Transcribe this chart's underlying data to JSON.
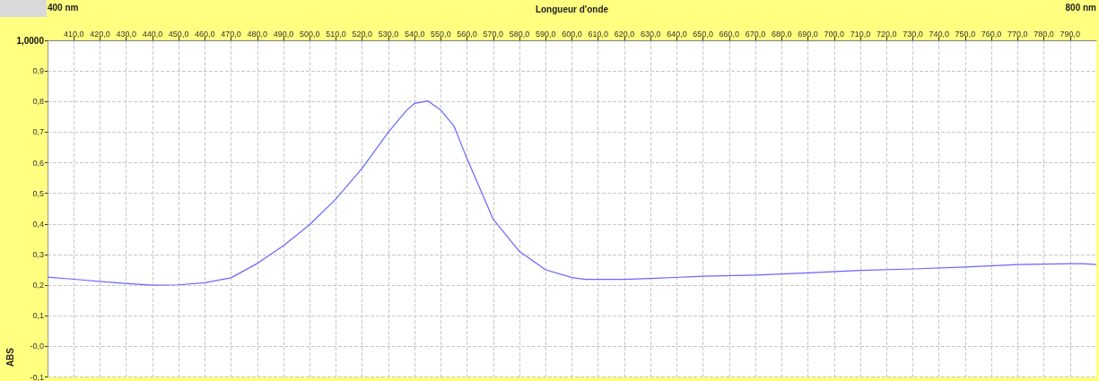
{
  "chart_data": {
    "type": "line",
    "xlabel": "Longueur d'onde",
    "ylabel": "ABS",
    "x": [
      400,
      409,
      427,
      440,
      450,
      460,
      470,
      480,
      490,
      500,
      510,
      520,
      530,
      537,
      540,
      545,
      550,
      555,
      560,
      570,
      580,
      590,
      600,
      605,
      610,
      620,
      630,
      650,
      670,
      690,
      710,
      730,
      750,
      770,
      790,
      795,
      800
    ],
    "series": [
      {
        "color": "#6666ff",
        "values": [
          0.226,
          0.22,
          0.207,
          0.2,
          0.201,
          0.208,
          0.224,
          0.271,
          0.329,
          0.398,
          0.482,
          0.582,
          0.7,
          0.772,
          0.794,
          0.802,
          0.772,
          0.72,
          0.613,
          0.415,
          0.31,
          0.25,
          0.225,
          0.219,
          0.219,
          0.219,
          0.222,
          0.229,
          0.233,
          0.24,
          0.248,
          0.253,
          0.259,
          0.267,
          0.27,
          0.27,
          0.267
        ]
      }
    ],
    "xlim": [
      400,
      800
    ],
    "annotations": [
      "400 nm",
      "800 nm"
    ],
    "xticks": [
      {
        "value": 410,
        "label": "410,0"
      },
      {
        "value": 420,
        "label": "420,0"
      },
      {
        "value": 430,
        "label": "430,0"
      },
      {
        "value": 440,
        "label": "440,0"
      },
      {
        "value": 450,
        "label": "450,0"
      },
      {
        "value": 460,
        "label": "460,0"
      },
      {
        "value": 470,
        "label": "470,0"
      },
      {
        "value": 480,
        "label": "480,0"
      },
      {
        "value": 490,
        "label": "490,0"
      },
      {
        "value": 500,
        "label": "500,0"
      },
      {
        "value": 510,
        "label": "510,0"
      },
      {
        "value": 520,
        "label": "520,0"
      },
      {
        "value": 530,
        "label": "530,0"
      },
      {
        "value": 540,
        "label": "540,0"
      },
      {
        "value": 550,
        "label": "550,0"
      },
      {
        "value": 560,
        "label": "560,0"
      },
      {
        "value": 570,
        "label": "570,0"
      },
      {
        "value": 580,
        "label": "580,0"
      },
      {
        "value": 590,
        "label": "590,0"
      },
      {
        "value": 600,
        "label": "600,0"
      },
      {
        "value": 610,
        "label": "610,0"
      },
      {
        "value": 620,
        "label": "620,0"
      },
      {
        "value": 630,
        "label": "630,0"
      },
      {
        "value": 640,
        "label": "640,0"
      },
      {
        "value": 650,
        "label": "650,0"
      },
      {
        "value": 660,
        "label": "660,0"
      },
      {
        "value": 670,
        "label": "670,0"
      },
      {
        "value": 680,
        "label": "680,0"
      },
      {
        "value": 690,
        "label": "690,0"
      },
      {
        "value": 700,
        "label": "700,0"
      },
      {
        "value": 710,
        "label": "710,0"
      },
      {
        "value": 720,
        "label": "720,0"
      },
      {
        "value": 730,
        "label": "730,0"
      },
      {
        "value": 740,
        "label": "740,0"
      },
      {
        "value": 750,
        "label": "750,0"
      },
      {
        "value": 760,
        "label": "760,0"
      },
      {
        "value": 770,
        "label": "770,0"
      },
      {
        "value": 780,
        "label": "780,0"
      },
      {
        "value": 790,
        "label": "790,0"
      }
    ],
    "ylim": [
      -0.1,
      1.0
    ],
    "yticks": [
      {
        "value": -0.1,
        "label": "-0,1"
      },
      {
        "value": 0,
        "label": "-0,0"
      },
      {
        "value": 0.1,
        "label": "0,1"
      },
      {
        "value": 0.2,
        "label": "0,2"
      },
      {
        "value": 0.3,
        "label": "0,3"
      },
      {
        "value": 0.4,
        "label": "0,4"
      },
      {
        "value": 0.5,
        "label": "0,5"
      },
      {
        "value": 0.6,
        "label": "0,6"
      },
      {
        "value": 0.7,
        "label": "0,7"
      },
      {
        "value": 0.8,
        "label": "0,8"
      },
      {
        "value": 0.9,
        "label": "0,9"
      },
      {
        "value": 1.0,
        "label": "1,0000"
      }
    ],
    "grid": true,
    "marker": "none",
    "line_style": "solid"
  }
}
